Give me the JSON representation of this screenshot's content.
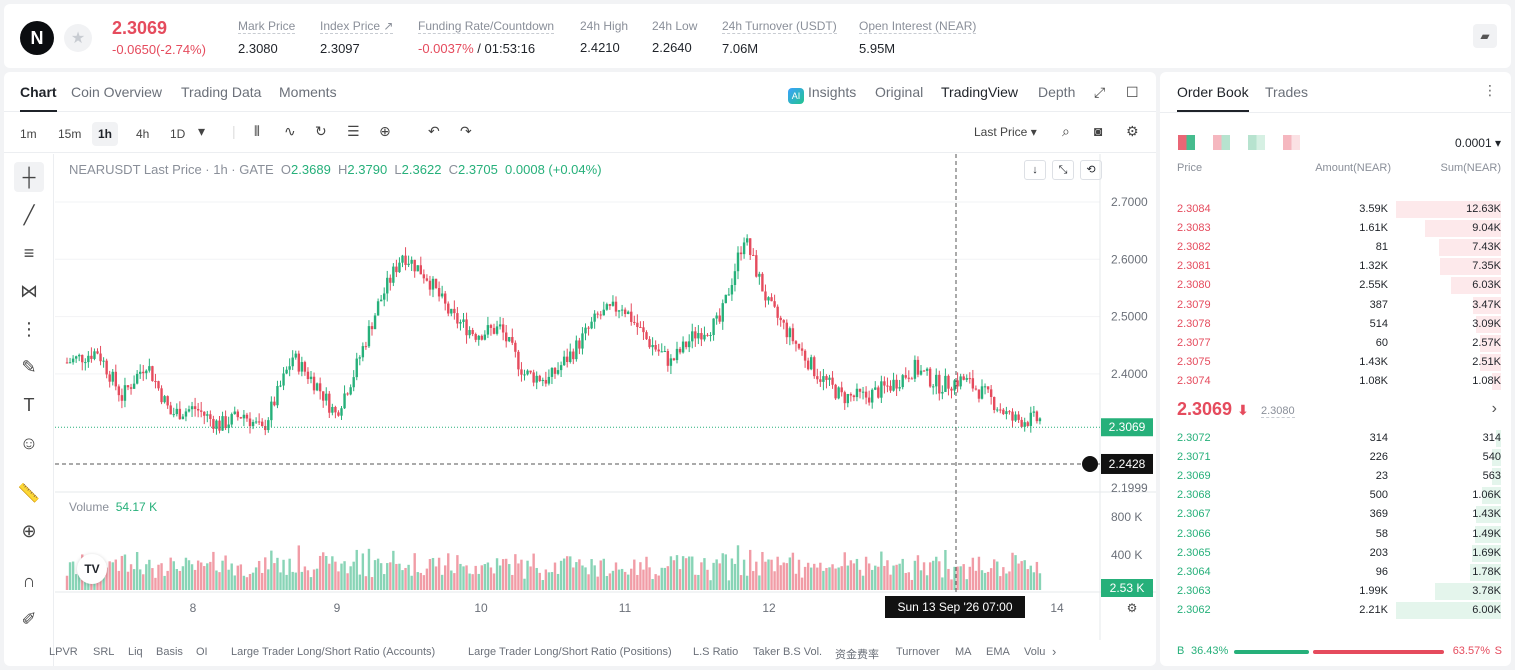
{
  "header": {
    "logo_text": "N",
    "last_price": "2.3069",
    "change": "-0.0650(-2.74%)",
    "stats": [
      {
        "label": "Mark Price",
        "value": "2.3080"
      },
      {
        "label": "Index Price ↗",
        "value": "2.3097"
      },
      {
        "label": "Funding Rate/Countdown",
        "value_neg": "-0.0037%",
        "value": " / 01:53:16"
      },
      {
        "label": "24h High",
        "value": "2.4210"
      },
      {
        "label": "24h Low",
        "value": "2.2640"
      },
      {
        "label": "24h Turnover (USDT)",
        "value": "7.06M"
      },
      {
        "label": "Open Interest (NEAR)",
        "value": "5.95M"
      }
    ]
  },
  "chart_tabs": [
    "Chart",
    "Coin Overview",
    "Trading Data",
    "Moments"
  ],
  "view_tabs": {
    "insights": "Insights",
    "original": "Original",
    "tradingview": "TradingView",
    "depth": "Depth"
  },
  "timeframes": [
    "1m",
    "15m",
    "1h",
    "4h",
    "1D"
  ],
  "active_timeframe": "1h",
  "price_type": "Last Price ▾",
  "legend": {
    "symbol": "NEARUSDT Last Price · 1h · GATE",
    "o": "2.3689",
    "h": "2.3790",
    "l": "2.3622",
    "c": "2.3705",
    "change": "0.0008 (+0.04%)"
  },
  "volume_label": "Volume",
  "volume_value": "54.17 K",
  "price_ticks": [
    "2.7000",
    "2.6000",
    "2.5000",
    "2.4000",
    "2.1999"
  ],
  "volume_ticks": [
    "800 K",
    "400 K"
  ],
  "last_price_tag": "2.3069",
  "crosshair_price_tag": "2.2428",
  "volume_tag": "2.53 K",
  "time_ticks": [
    "8",
    "9",
    "10",
    "11",
    "12",
    "14"
  ],
  "crosshair_time": "Sun 13 Sep '26   07:00",
  "indicators": [
    "LPVR",
    "SRL",
    "Liq",
    "Basis",
    "OI",
    "Large Trader Long/Short Ratio (Accounts)",
    "Large Trader Long/Short Ratio (Positions)",
    "L.S Ratio",
    "Taker B.S Vol.",
    "资金费率",
    "Turnover",
    "MA",
    "EMA",
    "Volu"
  ],
  "orderbook": {
    "tabs": [
      "Order Book",
      "Trades"
    ],
    "precision": "0.0001 ▾",
    "headers": {
      "price": "Price",
      "amount": "Amount(NEAR)",
      "sum": "Sum(NEAR)"
    },
    "asks": [
      {
        "price": "2.3084",
        "amount": "3.59K",
        "sum": "12.63K",
        "depth": 1.0
      },
      {
        "price": "2.3083",
        "amount": "1.61K",
        "sum": "9.04K",
        "depth": 0.72
      },
      {
        "price": "2.3082",
        "amount": "81",
        "sum": "7.43K",
        "depth": 0.59
      },
      {
        "price": "2.3081",
        "amount": "1.32K",
        "sum": "7.35K",
        "depth": 0.58
      },
      {
        "price": "2.3080",
        "amount": "2.55K",
        "sum": "6.03K",
        "depth": 0.48
      },
      {
        "price": "2.3079",
        "amount": "387",
        "sum": "3.47K",
        "depth": 0.27
      },
      {
        "price": "2.3078",
        "amount": "514",
        "sum": "3.09K",
        "depth": 0.24
      },
      {
        "price": "2.3077",
        "amount": "60",
        "sum": "2.57K",
        "depth": 0.2
      },
      {
        "price": "2.3075",
        "amount": "1.43K",
        "sum": "2.51K",
        "depth": 0.2
      },
      {
        "price": "2.3074",
        "amount": "1.08K",
        "sum": "1.08K",
        "depth": 0.09
      }
    ],
    "mid_price": "2.3069",
    "mid_mark": "2.3080",
    "bids": [
      {
        "price": "2.3072",
        "amount": "314",
        "sum": "314",
        "depth": 0.05
      },
      {
        "price": "2.3071",
        "amount": "226",
        "sum": "540",
        "depth": 0.09
      },
      {
        "price": "2.3069",
        "amount": "23",
        "sum": "563",
        "depth": 0.09
      },
      {
        "price": "2.3068",
        "amount": "500",
        "sum": "1.06K",
        "depth": 0.18
      },
      {
        "price": "2.3067",
        "amount": "369",
        "sum": "1.43K",
        "depth": 0.24
      },
      {
        "price": "2.3066",
        "amount": "58",
        "sum": "1.49K",
        "depth": 0.25
      },
      {
        "price": "2.3065",
        "amount": "203",
        "sum": "1.69K",
        "depth": 0.28
      },
      {
        "price": "2.3064",
        "amount": "96",
        "sum": "1.78K",
        "depth": 0.3
      },
      {
        "price": "2.3063",
        "amount": "1.99K",
        "sum": "3.78K",
        "depth": 0.63
      },
      {
        "price": "2.3062",
        "amount": "2.21K",
        "sum": "6.00K",
        "depth": 1.0
      }
    ],
    "buy_label": "B",
    "buy_pct": "36.43%",
    "sell_pct": "63.57%",
    "sell_label": "S",
    "buy_ratio": 0.3643
  },
  "colors": {
    "up": "#26b07a",
    "down": "#e54b5d"
  }
}
